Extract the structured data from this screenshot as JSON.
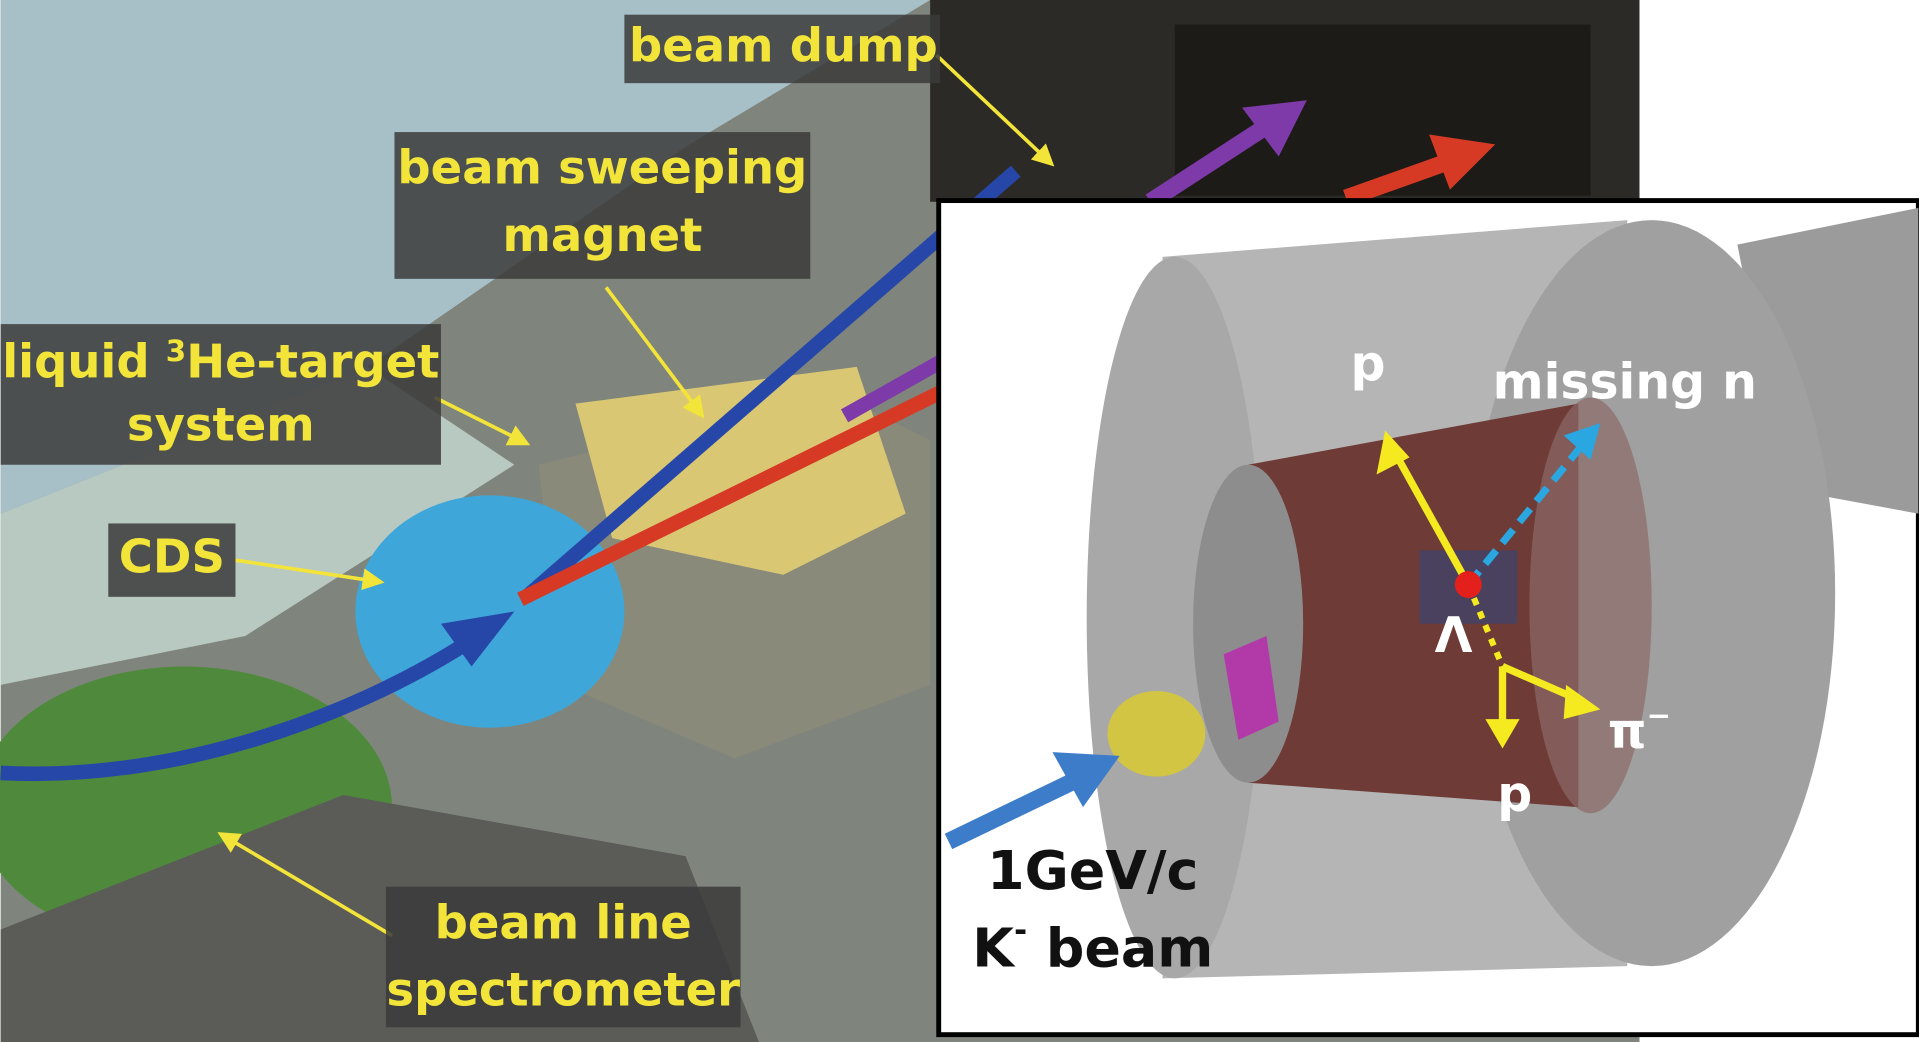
{
  "photo_labels": {
    "beam_dump": "beam dump",
    "beam_sweeping_magnet": [
      "beam sweeping",
      "magnet"
    ],
    "target": {
      "prefix": "liquid ",
      "superscript": "3",
      "suffix": "He-target",
      "line2": "system"
    },
    "cds": "CDS",
    "spectrometer": [
      "beam line",
      "spectrometer"
    ]
  },
  "inset": {
    "proton_upper": "p",
    "missing_neutron": "missing n",
    "lambda": "Λ",
    "pion": {
      "symbol": "π",
      "superscript": "−"
    },
    "proton_lower": "p",
    "beam": {
      "momentum": "1GeV/c",
      "particle": "K",
      "superscript": "-",
      "suffix": " beam"
    }
  }
}
